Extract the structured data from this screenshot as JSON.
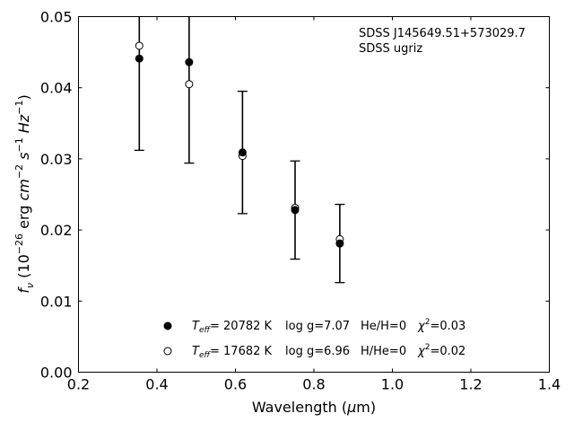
{
  "chart_data": {
    "type": "scatter",
    "annotation": [
      "SDSS J145649.51+573029.7",
      "SDSS ugriz"
    ],
    "xlabel": {
      "text": "Wavelength (",
      "greek": "μ",
      "suffix": "m)"
    },
    "ylabel": {
      "f": "f",
      "nu": "ν",
      "open": " (10",
      "exp1": "−26",
      "unit1": " erg ",
      "cm": "cm",
      "exp2": "−2",
      "s": "s",
      "exp3": "−1",
      "Hz": "Hz",
      "exp4": "−1",
      "close": ")"
    },
    "xlim": [
      0.2,
      1.4
    ],
    "ylim": [
      0.0,
      0.05
    ],
    "xticks": [
      "0.2",
      "0.4",
      "0.6",
      "0.8",
      "1.0",
      "1.2",
      "1.4"
    ],
    "yticks": [
      "0.00",
      "0.01",
      "0.02",
      "0.03",
      "0.04",
      "0.05"
    ],
    "grid": false,
    "series": [
      {
        "marker": "filled-circle",
        "color": "#000000",
        "x": [
          0.355,
          0.482,
          0.618,
          0.752,
          0.866
        ],
        "y": [
          0.0441,
          0.0436,
          0.0309,
          0.0228,
          0.0181
        ],
        "yerr": [
          0.0129,
          0.0142,
          0.0086,
          0.0069,
          0.0055
        ]
      },
      {
        "marker": "open-circle",
        "color": "#000000",
        "x": [
          0.355,
          0.482,
          0.618,
          0.752,
          0.866
        ],
        "y": [
          0.0459,
          0.0405,
          0.0304,
          0.0231,
          0.0187
        ]
      }
    ],
    "legend": [
      {
        "marker": "filled",
        "T": "T",
        "Tsub": "eff",
        "teff": "= 20782 K",
        "logg": "log g=7.07",
        "comp": "He/H=0",
        "chi": "χ",
        "chiexp": "2",
        "chival": "=0.03"
      },
      {
        "marker": "open",
        "T": "T",
        "Tsub": "eff",
        "teff": "= 17682 K",
        "logg": "log g=6.96",
        "comp": "H/He=0",
        "chi": "χ",
        "chiexp": "2",
        "chival": "=0.02"
      }
    ],
    "legend_position": "bottom-center"
  }
}
